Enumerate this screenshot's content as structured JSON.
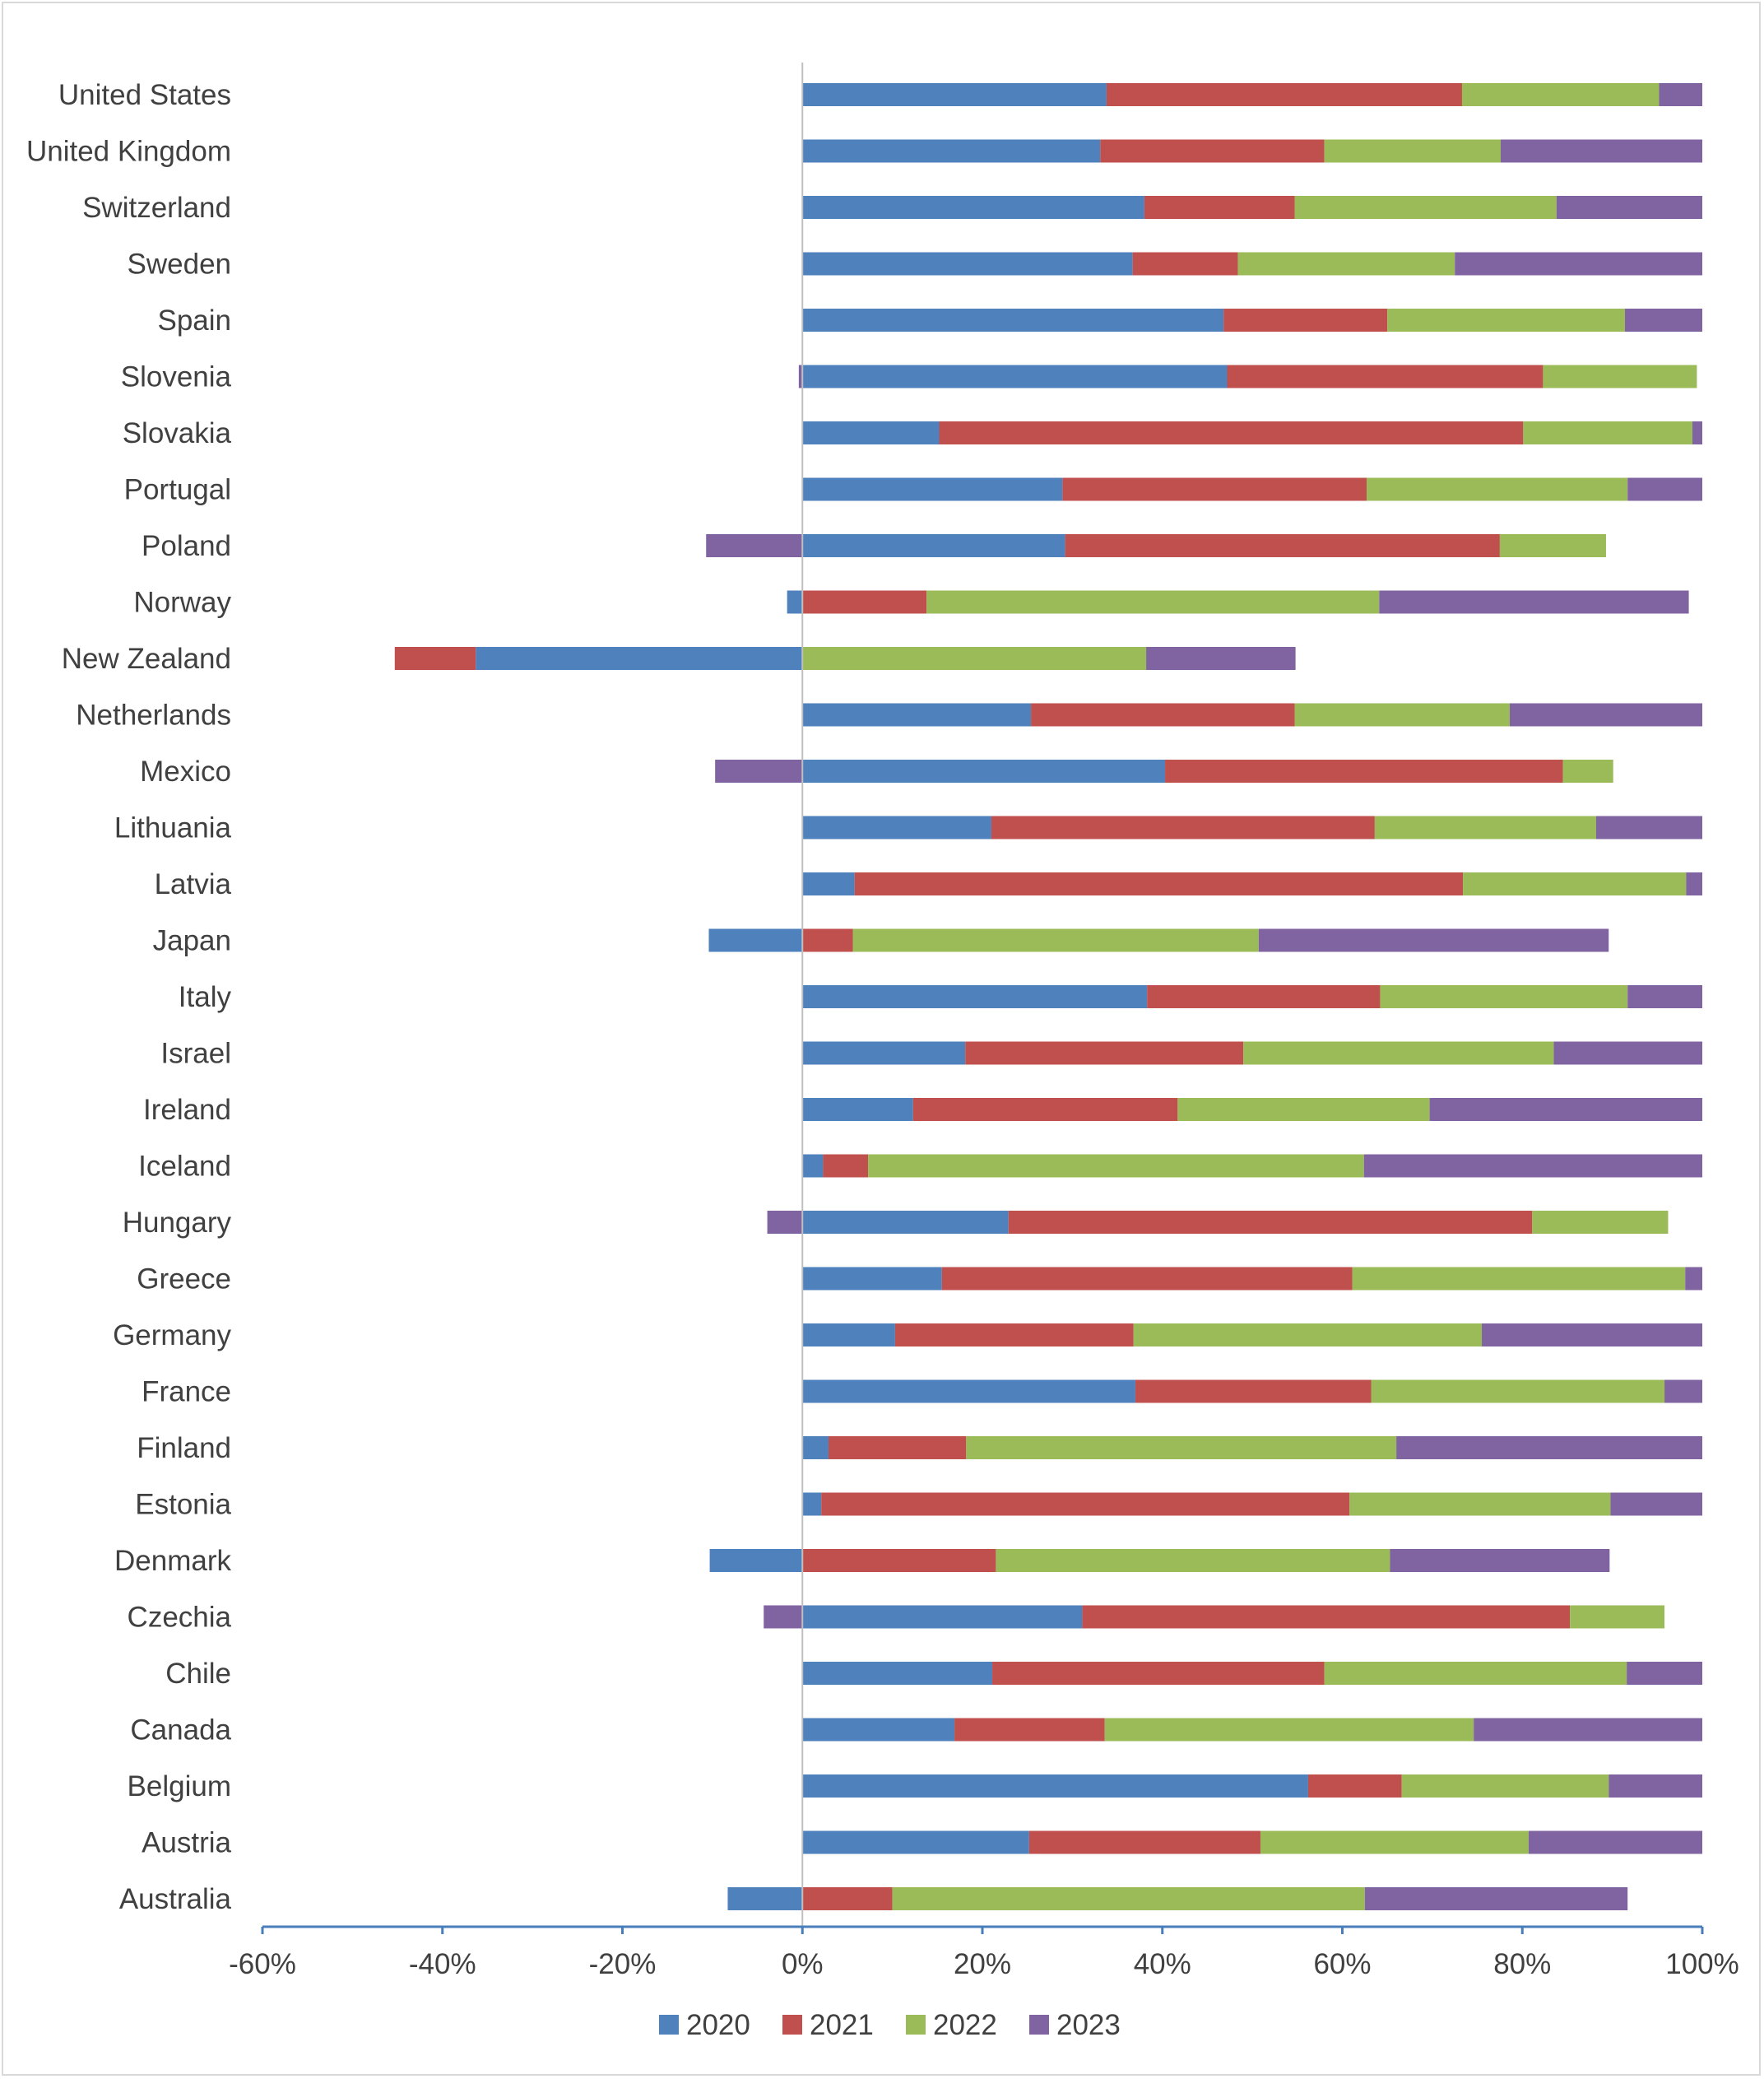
{
  "chart_data": {
    "type": "bar",
    "orientation": "horizontal",
    "stacked": true,
    "title": "",
    "xlabel": "",
    "ylabel": "",
    "xlim": [
      -0.6,
      1.0
    ],
    "x_ticks": [
      -0.6,
      -0.4,
      -0.2,
      0,
      0.2,
      0.4,
      0.6,
      0.8,
      1.0
    ],
    "x_tick_labels": [
      "-60%",
      "-40%",
      "-20%",
      "0%",
      "20%",
      "40%",
      "60%",
      "80%",
      "100%"
    ],
    "grid": false,
    "legend_position": "bottom",
    "categories": [
      "United States",
      "United Kingdom",
      "Switzerland",
      "Sweden",
      "Spain",
      "Slovenia",
      "Slovakia",
      "Portugal",
      "Poland",
      "Norway",
      "New Zealand",
      "Netherlands",
      "Mexico",
      "Lithuania",
      "Latvia",
      "Japan",
      "Italy",
      "Israel",
      "Ireland",
      "Iceland",
      "Hungary",
      "Greece",
      "Germany",
      "France",
      "Finland",
      "Estonia",
      "Denmark",
      "Czechia",
      "Chile",
      "Canada",
      "Belgium",
      "Austria",
      "Australia"
    ],
    "series": [
      {
        "name": "2020",
        "color": "#4f81bd",
        "values": [
          0.338,
          0.331,
          0.38,
          0.367,
          0.468,
          0.472,
          0.152,
          0.289,
          0.292,
          -0.017,
          -0.363,
          0.254,
          0.403,
          0.21,
          0.058,
          -0.104,
          0.383,
          0.181,
          0.123,
          0.023,
          0.229,
          0.155,
          0.103,
          0.37,
          0.029,
          0.021,
          -0.103,
          0.311,
          0.211,
          0.169,
          0.562,
          0.252,
          -0.083
        ]
      },
      {
        "name": "2021",
        "color": "#c0504d",
        "values": [
          0.395,
          0.249,
          0.167,
          0.117,
          0.182,
          0.351,
          0.649,
          0.338,
          0.483,
          0.138,
          -0.09,
          0.293,
          0.442,
          0.426,
          0.676,
          0.056,
          0.259,
          0.309,
          0.294,
          0.05,
          0.582,
          0.456,
          0.265,
          0.262,
          0.153,
          0.587,
          0.215,
          0.542,
          0.369,
          0.167,
          0.104,
          0.257,
          0.1
        ]
      },
      {
        "name": "2022",
        "color": "#9bbb59",
        "values": [
          0.219,
          0.196,
          0.291,
          0.241,
          0.264,
          0.171,
          0.188,
          0.29,
          0.118,
          0.503,
          0.382,
          0.239,
          0.056,
          0.246,
          0.248,
          0.451,
          0.275,
          0.345,
          0.28,
          0.551,
          0.151,
          0.37,
          0.387,
          0.326,
          0.478,
          0.29,
          0.438,
          0.105,
          0.336,
          0.41,
          0.23,
          0.298,
          0.525
        ]
      },
      {
        "name": "2023",
        "color": "#8064a2",
        "values": [
          0.048,
          0.224,
          0.162,
          0.275,
          0.086,
          -0.004,
          0.011,
          0.083,
          -0.107,
          0.344,
          0.166,
          0.214,
          -0.097,
          0.118,
          0.018,
          0.389,
          0.083,
          0.165,
          0.303,
          0.376,
          -0.039,
          0.019,
          0.245,
          0.042,
          0.34,
          0.102,
          0.244,
          -0.043,
          0.084,
          0.254,
          0.104,
          0.193,
          0.292
        ]
      }
    ]
  }
}
